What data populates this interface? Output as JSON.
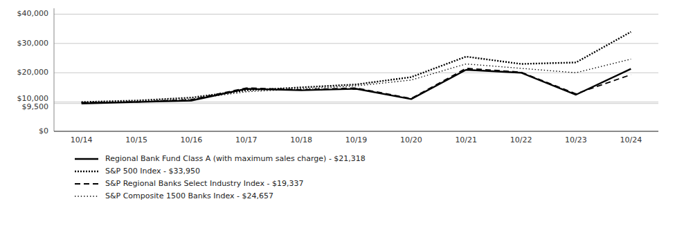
{
  "chart_data": {
    "type": "line",
    "categories": [
      "10/14",
      "10/15",
      "10/16",
      "10/17",
      "10/18",
      "10/19",
      "10/20",
      "10/21",
      "10/22",
      "10/23",
      "10/24"
    ],
    "series": [
      {
        "name": "Regional Bank Fund Class A (with maximum sales charge)  - $21,318",
        "color": "#000000",
        "line_style": "solid",
        "values": [
          9500,
          10000,
          10500,
          14500,
          14000,
          14500,
          11000,
          21000,
          20000,
          12500,
          21318
        ]
      },
      {
        "name": "S&P 500 Index - $33,950",
        "color": "#000000",
        "line_style": "dotted",
        "values": [
          10000,
          10500,
          11500,
          14000,
          15000,
          16000,
          18500,
          25500,
          23000,
          23500,
          33950
        ]
      },
      {
        "name": "S&P Regional Banks Select Industry Index - $19,337",
        "color": "#000000",
        "line_style": "dashed",
        "values": [
          9800,
          10000,
          10800,
          14800,
          14200,
          14800,
          11200,
          21500,
          20200,
          12800,
          19337
        ]
      },
      {
        "name": "S&P Composite 1500 Banks Index - $24,657",
        "color": "#000000",
        "line_style": "fine-dotted",
        "values": [
          9800,
          10200,
          11000,
          13500,
          14500,
          15500,
          17500,
          23000,
          21500,
          20000,
          24657
        ]
      }
    ],
    "ylim": [
      0,
      42000
    ],
    "yticks": [
      {
        "value": 0,
        "label": "$0"
      },
      {
        "value": 9500,
        "label": "$9,500"
      },
      {
        "value": 10000,
        "label": "$10,000"
      },
      {
        "value": 20000,
        "label": "$20,000"
      },
      {
        "value": 30000,
        "label": "$30,000"
      },
      {
        "value": 40000,
        "label": "$40,000"
      }
    ],
    "grid": true,
    "legend": "bottom"
  }
}
